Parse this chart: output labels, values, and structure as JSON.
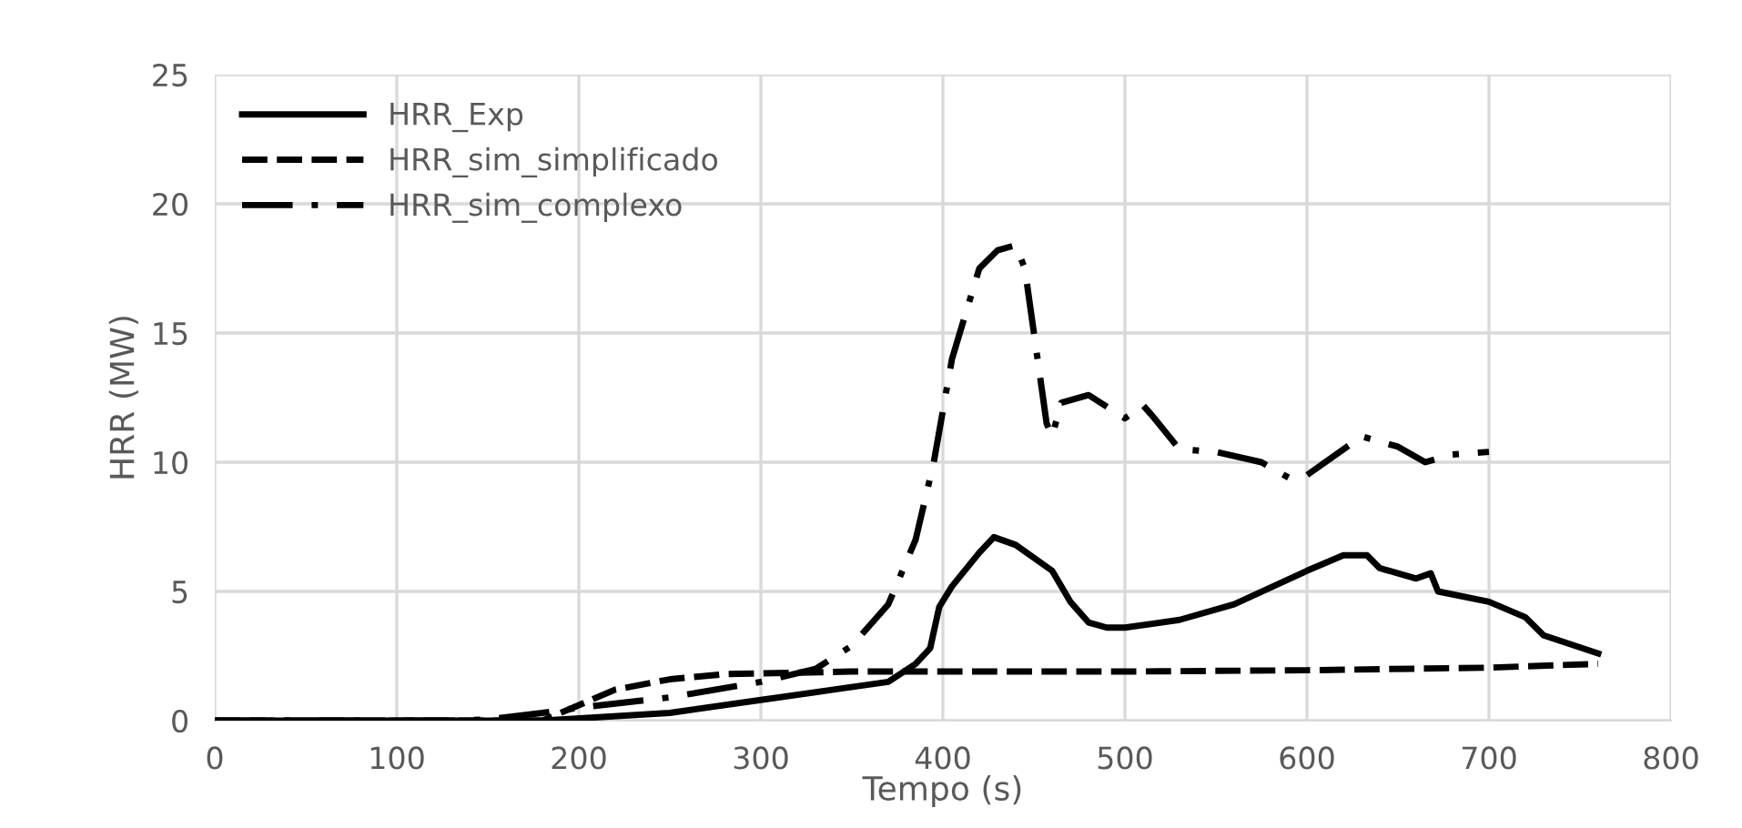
{
  "chart_data": {
    "type": "line",
    "xlabel": "Tempo (s)",
    "ylabel": "HRR (MW)",
    "xlim": [
      0,
      800
    ],
    "xticks": [
      0,
      100,
      200,
      300,
      400,
      500,
      600,
      700,
      800
    ],
    "ylim": [
      0,
      25
    ],
    "yticks": [
      0,
      5,
      10,
      15,
      20,
      25
    ],
    "grid": true,
    "legend": "top left",
    "marker": "none",
    "series": [
      {
        "name": "HRR_Exp",
        "color": "#000000",
        "line_style": "solid",
        "x": [
          0,
          100,
          180,
          250,
          300,
          340,
          370,
          385,
          393,
          398,
          405,
          420,
          428,
          440,
          460,
          470,
          480,
          490,
          500,
          530,
          560,
          600,
          620,
          633,
          640,
          660,
          668,
          672,
          700,
          720,
          730,
          760
        ],
        "values": [
          0,
          0,
          0,
          0.3,
          0.8,
          1.2,
          1.5,
          2.2,
          2.8,
          4.4,
          5.2,
          6.5,
          7.1,
          6.8,
          5.8,
          4.6,
          3.8,
          3.6,
          3.6,
          3.9,
          4.5,
          5.8,
          6.4,
          6.4,
          5.9,
          5.5,
          5.7,
          5.0,
          4.6,
          4.0,
          3.3,
          2.6
        ]
      },
      {
        "name": "HRR_sim_simplificado",
        "color": "#000000",
        "line_style": "dashed",
        "x": [
          0,
          100,
          180,
          200,
          220,
          250,
          280,
          350,
          500,
          600,
          700,
          760
        ],
        "values": [
          0,
          0,
          0,
          0.6,
          1.2,
          1.6,
          1.8,
          1.9,
          1.9,
          1.95,
          2.05,
          2.2
        ]
      },
      {
        "name": "HRR_sim_complexo",
        "color": "#000000",
        "line_style": "dashdot",
        "x": [
          0,
          100,
          130,
          150,
          180,
          200,
          250,
          300,
          330,
          350,
          370,
          385,
          395,
          405,
          420,
          430,
          440,
          445,
          452,
          457,
          460,
          465,
          480,
          500,
          510,
          515,
          530,
          550,
          575,
          590,
          600,
          620,
          630,
          650,
          665,
          680,
          700
        ],
        "values": [
          0,
          0,
          0,
          0.05,
          0.3,
          0.5,
          0.9,
          1.5,
          2.0,
          2.9,
          4.5,
          7.0,
          10,
          14,
          17.5,
          18.2,
          18.4,
          17.5,
          14,
          11.5,
          11.0,
          12.3,
          12.6,
          11.7,
          12.2,
          11.8,
          10.5,
          10.4,
          10.0,
          9.4,
          9.5,
          10.5,
          11.0,
          10.6,
          10.0,
          10.3,
          10.4
        ]
      }
    ]
  }
}
